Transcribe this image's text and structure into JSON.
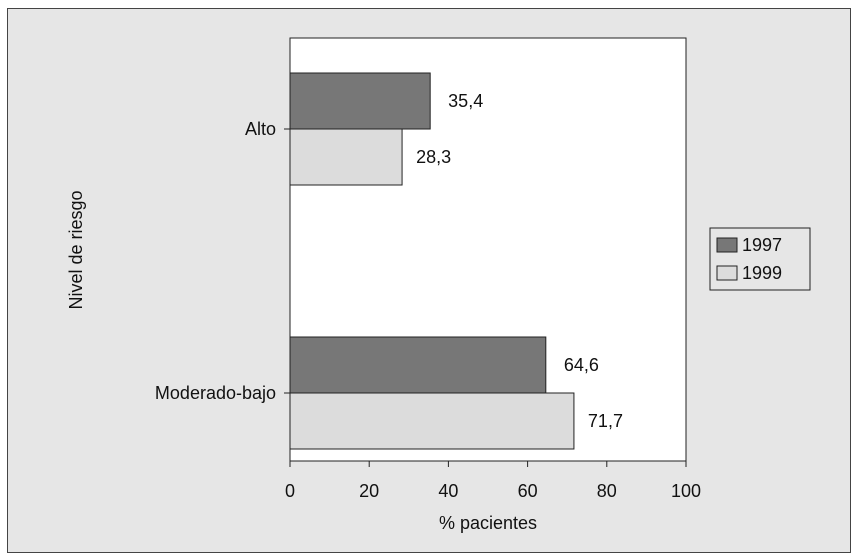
{
  "chart_data": {
    "type": "bar",
    "orientation": "horizontal",
    "categories": [
      "Alto",
      "Moderado-bajo"
    ],
    "series": [
      {
        "name": "1997",
        "values": [
          35.4,
          64.6
        ],
        "labels": [
          "35,4",
          "64,6"
        ],
        "color": "#777777"
      },
      {
        "name": "1999",
        "values": [
          28.3,
          71.7
        ],
        "labels": [
          "28,3",
          "71,7"
        ],
        "color": "#dcdcdc"
      }
    ],
    "title": "",
    "xlabel": "% pacientes",
    "ylabel": "Nivel de riesgo",
    "xlim": [
      0,
      100
    ],
    "xticks": [
      "0",
      "20",
      "40",
      "60",
      "80",
      "100"
    ],
    "grid": false,
    "legend_position": "right"
  },
  "colors": {
    "background": "#e6e6e6",
    "plot_area": "#ffffff",
    "series_1997": "#777777",
    "series_1999": "#dcdcdc"
  }
}
